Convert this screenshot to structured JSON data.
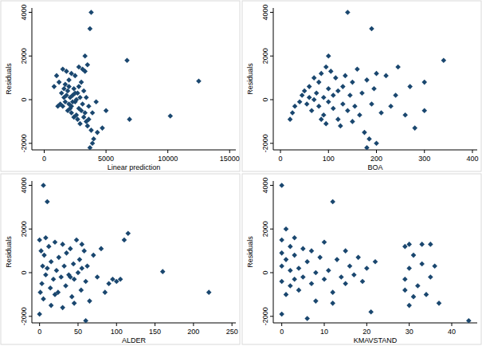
{
  "chart_data": [
    {
      "type": "scatter",
      "x_label": "Linear prediction",
      "y_label": "Residuals",
      "color": "#1a476f",
      "marker": "diamond",
      "grid": false,
      "xlim": [
        -1000,
        15500
      ],
      "xticks": [
        0,
        5000,
        10000,
        15000
      ],
      "ylim": [
        -2300,
        4200
      ],
      "yticks": [
        -2000,
        0,
        2000,
        4000
      ],
      "x": [
        3800,
        3700,
        3300,
        3500,
        6700,
        12500,
        10200,
        6900,
        3700,
        3900,
        4000,
        4300,
        4700,
        5000,
        800,
        1000,
        1200,
        1500,
        1800,
        2000,
        2200,
        2500,
        2800,
        3100,
        3300,
        1400,
        1600,
        1700,
        1800,
        1900,
        2000,
        2100,
        2200,
        2300,
        2400,
        2500,
        2600,
        2700,
        2800,
        2900,
        3000,
        3100,
        3200,
        3300,
        3400,
        3500,
        3600,
        2000,
        2200,
        1700,
        1500,
        2400,
        2600,
        2900,
        3000,
        3200,
        3400,
        3600,
        1300,
        2100,
        2300,
        2500,
        2700,
        3800,
        3900,
        4200,
        1900,
        2800,
        1100,
        1600
      ],
      "values": [
        4000,
        3250,
        2000,
        1600,
        1800,
        850,
        -750,
        -900,
        -2200,
        -2000,
        -1800,
        -1500,
        -1300,
        -500,
        600,
        1100,
        800,
        1400,
        1300,
        900,
        1200,
        1100,
        1500,
        1400,
        1300,
        300,
        100,
        -100,
        200,
        400,
        -200,
        100,
        -300,
        200,
        500,
        -100,
        0,
        300,
        -400,
        100,
        -500,
        -200,
        -800,
        -600,
        -1000,
        -1200,
        -900,
        600,
        -600,
        700,
        -300,
        -800,
        -700,
        -1100,
        800,
        400,
        100,
        -300,
        -200,
        -400,
        -100,
        300,
        -900,
        -1400,
        -600,
        -100,
        -500,
        600,
        -300,
        500
      ]
    },
    {
      "type": "scatter",
      "x_label": "BOA",
      "y_label": "Residuals",
      "color": "#1a476f",
      "marker": "diamond",
      "grid": false,
      "xlim": [
        -15,
        410
      ],
      "xticks": [
        0,
        100,
        200,
        300,
        400
      ],
      "ylim": [
        -2300,
        4200
      ],
      "yticks": [
        -2000,
        0,
        2000,
        4000
      ],
      "x": [
        140,
        190,
        340,
        300,
        300,
        280,
        180,
        200,
        245,
        100,
        20,
        25,
        30,
        40,
        45,
        50,
        55,
        60,
        60,
        65,
        70,
        70,
        75,
        80,
        80,
        85,
        90,
        90,
        95,
        100,
        100,
        105,
        110,
        110,
        115,
        120,
        120,
        125,
        130,
        130,
        135,
        140,
        145,
        150,
        150,
        155,
        160,
        165,
        170,
        175,
        180,
        185,
        190,
        195,
        210,
        220,
        230,
        240,
        260,
        270,
        200,
        85,
        95
      ],
      "values": [
        4000,
        3250,
        1800,
        800,
        -500,
        -1300,
        -2200,
        -2000,
        1500,
        2000,
        -900,
        -600,
        -300,
        -100,
        200,
        400,
        -200,
        100,
        600,
        -500,
        0,
        1000,
        300,
        -300,
        800,
        1200,
        100,
        -700,
        1500,
        -100,
        500,
        1300,
        -400,
        200,
        1000,
        -900,
        400,
        -1200,
        600,
        -200,
        1100,
        -500,
        200,
        -1000,
        800,
        -300,
        1400,
        -700,
        300,
        -1500,
        900,
        -1800,
        -200,
        500,
        -600,
        1100,
        -300,
        200,
        -700,
        600,
        1200,
        -900,
        -1100
      ]
    },
    {
      "type": "scatter",
      "x_label": "ALDER",
      "y_label": "Residuals",
      "color": "#1a476f",
      "marker": "diamond",
      "grid": false,
      "xlim": [
        -10,
        255
      ],
      "xticks": [
        0,
        50,
        100,
        150,
        200,
        250
      ],
      "ylim": [
        -2300,
        4200
      ],
      "yticks": [
        -2000,
        0,
        2000,
        4000
      ],
      "x": [
        5,
        10,
        115,
        110,
        160,
        220,
        60,
        0,
        0,
        100,
        95,
        80,
        2,
        3,
        4,
        5,
        6,
        8,
        10,
        12,
        14,
        15,
        18,
        20,
        22,
        24,
        25,
        28,
        30,
        32,
        34,
        35,
        38,
        40,
        42,
        44,
        45,
        48,
        50,
        52,
        54,
        55,
        58,
        60,
        62,
        65,
        70,
        75,
        85,
        90,
        105,
        15,
        30,
        20,
        8,
        45,
        55,
        1,
        40
      ],
      "values": [
        4000,
        3250,
        1800,
        1500,
        50,
        -900,
        -2200,
        -1900,
        1500,
        -400,
        -300,
        1100,
        1000,
        -500,
        300,
        -1200,
        800,
        -100,
        200,
        1200,
        -700,
        500,
        -300,
        1400,
        100,
        -900,
        700,
        -200,
        1300,
        300,
        -600,
        900,
        -100,
        1100,
        -1100,
        400,
        -300,
        1500,
        0,
        600,
        -800,
        200,
        1000,
        -400,
        300,
        -1300,
        800,
        -200,
        -900,
        -500,
        -300,
        -1500,
        -1600,
        -1000,
        1600,
        -1400,
        1300,
        -900,
        -200
      ]
    },
    {
      "type": "scatter",
      "x_label": "KMAVSTAND",
      "y_label": "Residuals",
      "color": "#1a476f",
      "marker": "diamond",
      "grid": false,
      "xlim": [
        -2,
        46
      ],
      "xticks": [
        0,
        10,
        20,
        30,
        40
      ],
      "ylim": [
        -2300,
        4200
      ],
      "yticks": [
        -2000,
        0,
        2000,
        4000
      ],
      "x": [
        0,
        12,
        44,
        37,
        30,
        31,
        35,
        30,
        0,
        6,
        0,
        0,
        0,
        0,
        1,
        1,
        1,
        2,
        2,
        2,
        3,
        3,
        4,
        4,
        5,
        5,
        6,
        7,
        7,
        8,
        8,
        9,
        10,
        10,
        11,
        12,
        13,
        14,
        15,
        15,
        16,
        17,
        18,
        19,
        20,
        21,
        22,
        29,
        29,
        30,
        31,
        32,
        33,
        33,
        34,
        35,
        36,
        29,
        3,
        12
      ],
      "values": [
        4000,
        3250,
        -2200,
        -1400,
        -1500,
        -1100,
        1300,
        1300,
        -1900,
        -2100,
        1500,
        900,
        -400,
        300,
        2000,
        -1000,
        600,
        -600,
        100,
        1200,
        -300,
        800,
        -800,
        200,
        1100,
        -200,
        500,
        -500,
        1000,
        0,
        -1300,
        700,
        -300,
        1400,
        100,
        -900,
        600,
        -200,
        1000,
        -500,
        300,
        -100,
        700,
        -400,
        200,
        -1800,
        500,
        1200,
        -300,
        200,
        800,
        -600,
        1300,
        400,
        -1000,
        -200,
        300,
        -800,
        1600,
        -1400
      ]
    }
  ]
}
